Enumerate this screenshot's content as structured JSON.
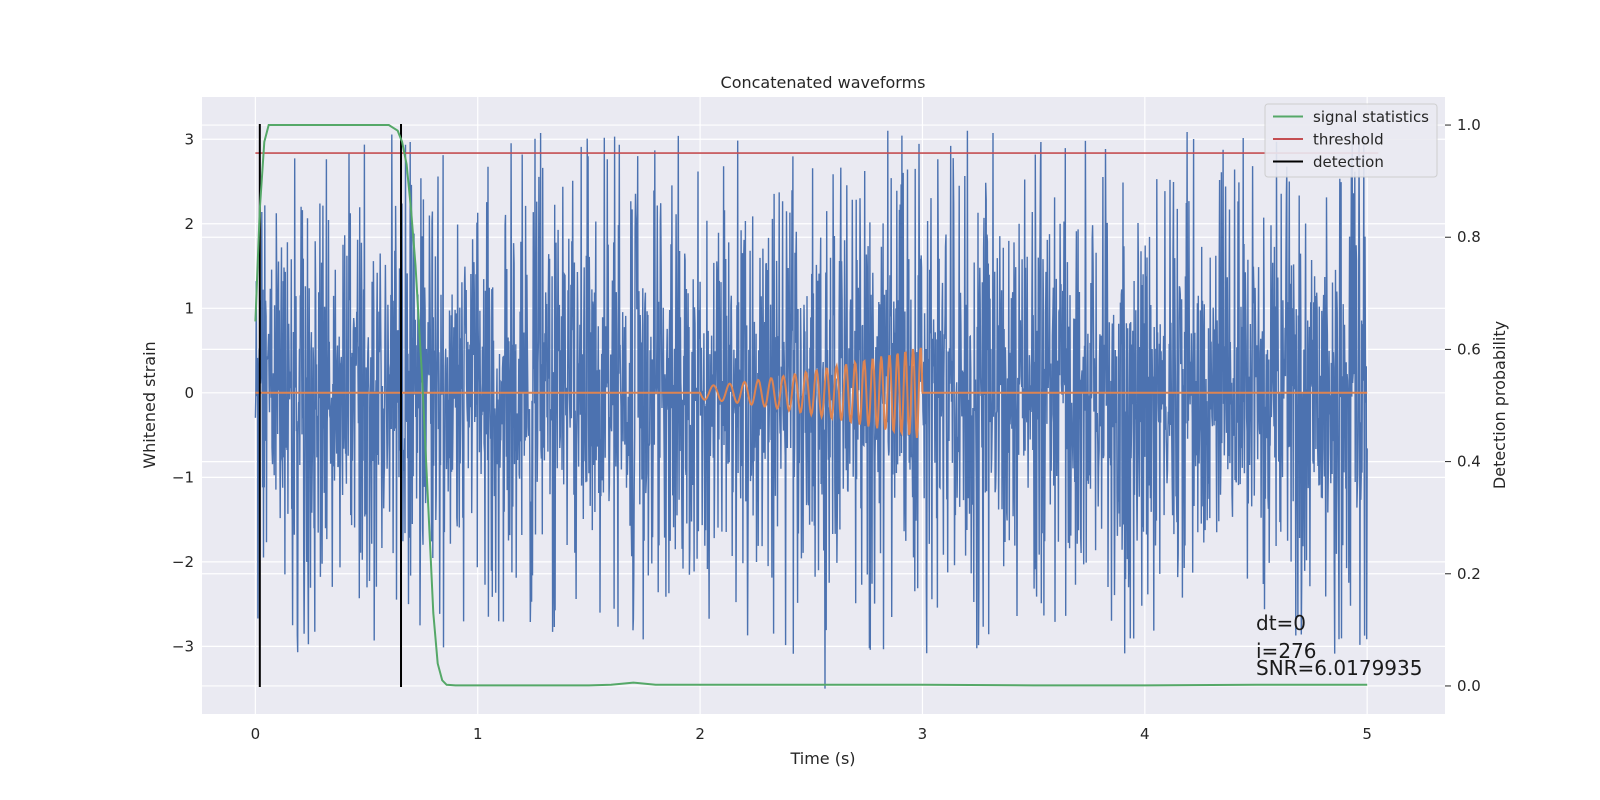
{
  "chart_data": {
    "type": "line",
    "title": "Concatenated waveforms",
    "xlabel": "Time (s)",
    "ylabel": "Whitened strain",
    "y2label": "Detection probability",
    "xlim": [
      -0.24,
      5.35
    ],
    "ylim": [
      -3.8,
      3.5
    ],
    "y2lim": [
      -0.05,
      1.05
    ],
    "x_ticks": [
      0,
      1,
      2,
      3,
      4,
      5
    ],
    "y_ticks": [
      -3,
      -2,
      -1,
      0,
      1,
      2,
      3
    ],
    "y2_ticks": [
      0.0,
      0.2,
      0.4,
      0.6,
      0.8,
      1.0
    ],
    "x_tick_labels": [
      "0",
      "1",
      "2",
      "3",
      "4",
      "5"
    ],
    "y_tick_labels": [
      "−3",
      "−2",
      "−1",
      "0",
      "1",
      "2",
      "3"
    ],
    "y2_tick_labels": [
      "0.0",
      "0.2",
      "0.4",
      "0.6",
      "0.8",
      "1.0"
    ],
    "grid": true,
    "legend_position": "top-right",
    "series": [
      {
        "role": "strain",
        "color": "#4c72b0",
        "x_range": [
          0,
          5
        ],
        "core_amplitude": 0.8,
        "peak_amplitude": 3.1
      },
      {
        "role": "injected-waveform",
        "color": "#dd8452",
        "x_range": [
          0,
          5
        ],
        "chirp_start": 2.0,
        "chirp_end": 3.0,
        "amplitude_start": 0.08,
        "amplitude_end": 0.55
      },
      {
        "name": "signal statistics",
        "axis": "right",
        "color": "#55a868",
        "x": [
          0,
          0.02,
          0.04,
          0.06,
          0.1,
          0.6,
          0.64,
          0.66,
          0.68,
          0.7,
          0.72,
          0.75,
          0.78,
          0.8,
          0.82,
          0.84,
          0.86,
          0.9,
          1.0,
          1.5,
          1.6,
          1.7,
          1.8,
          2.0,
          2.5,
          3.0,
          3.5,
          4.0,
          4.5,
          5.0
        ],
        "y": [
          0.65,
          0.85,
          0.97,
          1.0,
          1.0,
          1.0,
          0.99,
          0.97,
          0.93,
          0.85,
          0.75,
          0.55,
          0.3,
          0.13,
          0.04,
          0.01,
          0.002,
          0.001,
          0.001,
          0.001,
          0.002,
          0.006,
          0.002,
          0.002,
          0.002,
          0.002,
          0.001,
          0.001,
          0.002,
          0.002
        ]
      },
      {
        "name": "threshold",
        "axis": "right",
        "color": "#c44e52",
        "value": 0.95,
        "x_range": [
          0,
          5.05
        ]
      },
      {
        "name": "detection",
        "color": "#000000",
        "x": [
          0.02,
          0.655
        ]
      }
    ],
    "annotations": [
      "dt=0",
      "i=276",
      "SNR=6.0179935"
    ]
  }
}
